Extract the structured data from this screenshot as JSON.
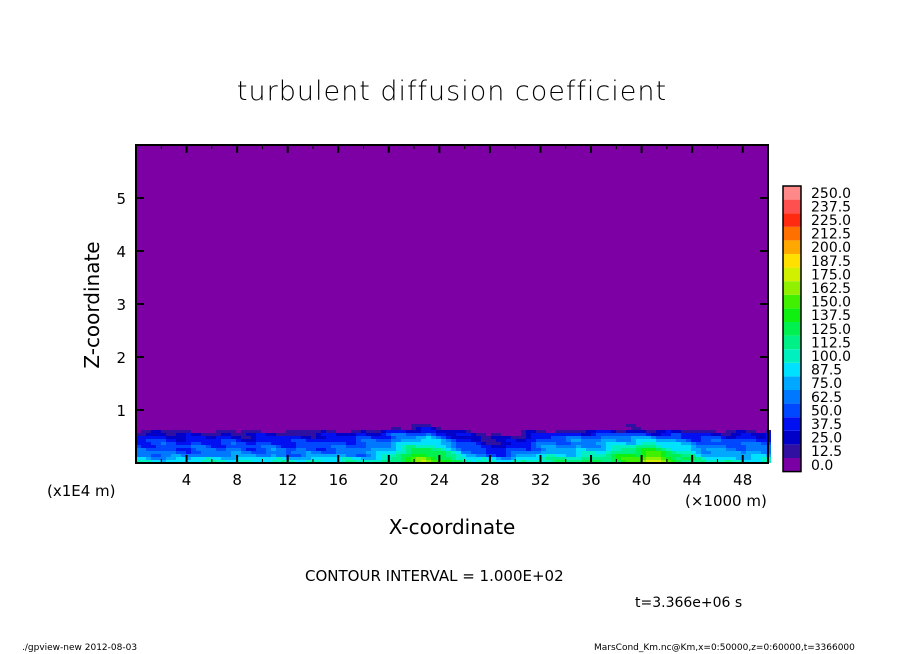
{
  "chart_data": {
    "type": "heatmap",
    "title": "turbulent diffusion coefficient",
    "xlabel": "X-coordinate",
    "ylabel": "Z-coordinate",
    "x_unit": "(×1000 m)",
    "y_unit": "(x1E4 m)",
    "xlim": [
      0,
      50
    ],
    "ylim": [
      0,
      6
    ],
    "x_ticks": [
      4,
      8,
      12,
      16,
      20,
      24,
      28,
      32,
      36,
      40,
      44,
      48
    ],
    "y_ticks": [
      1,
      2,
      3,
      4,
      5
    ],
    "colorbar": {
      "labels": [
        "0.0",
        "12.5",
        "25.0",
        "37.5",
        "50.0",
        "62.5",
        "75.0",
        "87.5",
        "100.0",
        "112.5",
        "125.0",
        "137.5",
        "150.0",
        "162.5",
        "175.0",
        "187.5",
        "200.0",
        "212.5",
        "225.0",
        "237.5",
        "250.0"
      ],
      "colors": [
        "#7a00a6",
        "#3010a0",
        "#0000c8",
        "#0010f0",
        "#0048ff",
        "#0078ff",
        "#00a8ff",
        "#00e0ff",
        "#00f0c0",
        "#00f088",
        "#00f050",
        "#10f010",
        "#40f000",
        "#90f000",
        "#d0f000",
        "#ffe000",
        "#ffa800",
        "#ff7000",
        "#ff2a10",
        "#ff5050",
        "#ff8888"
      ]
    },
    "background_color": "#7c00a4",
    "contour_interval": "CONTOUR INTERVAL = 1.000E+02",
    "grid_x": [
      1,
      3,
      5,
      7,
      9,
      11,
      13,
      15,
      17,
      19,
      21,
      23,
      25,
      27,
      29,
      31,
      33,
      35,
      37,
      39,
      41,
      43,
      45,
      47,
      49
    ],
    "grid_z": [
      0.05,
      0.15,
      0.25,
      0.35,
      0.45,
      0.55,
      0.65
    ],
    "values": [
      [
        90,
        95,
        100,
        100,
        105,
        100,
        100,
        100,
        105,
        100,
        140,
        170,
        130,
        110,
        90,
        110,
        120,
        120,
        130,
        150,
        180,
        140,
        110,
        100,
        100
      ],
      [
        70,
        60,
        70,
        75,
        70,
        70,
        65,
        75,
        70,
        75,
        120,
        150,
        110,
        60,
        50,
        80,
        90,
        100,
        110,
        140,
        160,
        120,
        85,
        80,
        80
      ],
      [
        60,
        55,
        60,
        65,
        60,
        65,
        60,
        60,
        65,
        70,
        110,
        130,
        90,
        50,
        40,
        60,
        75,
        80,
        90,
        120,
        140,
        100,
        75,
        70,
        70
      ],
      [
        55,
        50,
        50,
        55,
        50,
        55,
        50,
        55,
        60,
        65,
        90,
        110,
        70,
        40,
        30,
        50,
        70,
        70,
        80,
        100,
        110,
        80,
        65,
        60,
        60
      ],
      [
        50,
        45,
        40,
        45,
        40,
        45,
        40,
        45,
        50,
        55,
        70,
        90,
        55,
        30,
        20,
        40,
        60,
        65,
        70,
        80,
        80,
        60,
        55,
        50,
        50
      ],
      [
        30,
        25,
        20,
        25,
        20,
        30,
        20,
        30,
        35,
        40,
        55,
        60,
        40,
        15,
        10,
        25,
        40,
        45,
        50,
        50,
        45,
        40,
        35,
        30,
        30
      ],
      [
        0,
        0,
        0,
        0,
        0,
        0,
        0,
        0,
        0,
        0,
        20,
        30,
        5,
        0,
        0,
        0,
        0,
        0,
        5,
        10,
        5,
        0,
        0,
        0,
        0
      ]
    ]
  },
  "annotations": {
    "time": "t=3.366e+06 s",
    "footer_left": "./gpview-new  2012-08-03",
    "footer_right": "MarsCond_Km.nc@Km,x=0:50000,z=0:60000,t=3366000"
  }
}
